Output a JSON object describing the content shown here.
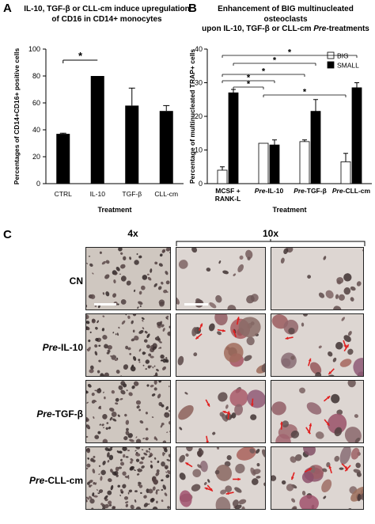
{
  "panelA": {
    "label": "A",
    "title_line1": "IL-10, TGF-β or CLL-cm induce upregulation",
    "title_line2": "of CD16 in CD14+ monocytes",
    "chart_data": {
      "type": "bar",
      "categories": [
        "CTRL",
        "IL-10",
        "TGF-β",
        "CLL-cm"
      ],
      "values": [
        37,
        80,
        58,
        54
      ],
      "errors": [
        0.5,
        0,
        13,
        4
      ],
      "ylim": [
        0,
        100
      ],
      "yticks": [
        0,
        20,
        40,
        60,
        80,
        100
      ],
      "ylabel": "Percentages of CD14+CD16+ positive cells",
      "xlabel": "Treatment",
      "bar_color": "#000000",
      "significance": [
        {
          "from": 0,
          "to": 1,
          "label": "*"
        }
      ]
    }
  },
  "panelB": {
    "label": "B",
    "title_line1": "Enhancement of BIG multinucleated osteoclasts",
    "title_line2_plain": "upon IL-10, TGF-β or CLL-cm",
    "title_line2_italic": "Pre",
    "title_line2_end": "-treatments",
    "chart_data": {
      "type": "bar",
      "categories": [
        "MCSF + RANK-L",
        "Pre-IL-10",
        "Pre-TGF-β",
        "Pre-CLL-cm"
      ],
      "category_lines": [
        [
          "MCSF +",
          "RANK-L"
        ],
        [
          "Pre",
          "-IL-10"
        ],
        [
          "Pre",
          "-TGF-β"
        ],
        [
          "Pre",
          "-CLL-cm"
        ]
      ],
      "series": [
        {
          "name": "BIG",
          "values": [
            4,
            12,
            12.5,
            6.5
          ],
          "errors": [
            1,
            0,
            0.5,
            2.5
          ],
          "color": "#ffffff"
        },
        {
          "name": "SMALL",
          "values": [
            27,
            11.5,
            21.5,
            28.5
          ],
          "errors": [
            1,
            1.5,
            3.5,
            1.5
          ],
          "color": "#000000"
        }
      ],
      "ylim": [
        0,
        40
      ],
      "yticks": [
        0,
        10,
        20,
        30,
        40
      ],
      "ylabel": "Percentage of multinucleated TRAP+ cells",
      "xlabel": "Treatment",
      "legend": "top-right",
      "significance_label": "*"
    }
  },
  "panelC": {
    "label": "C",
    "col_4x": "4x",
    "col_10x": "10x",
    "rows": [
      {
        "prefix": "",
        "name": "CN"
      },
      {
        "prefix": "Pre",
        "name": "-IL-10"
      },
      {
        "prefix": "Pre",
        "name": "-TGF-β"
      },
      {
        "prefix": "Pre",
        "name": "-CLL-cm"
      }
    ]
  }
}
